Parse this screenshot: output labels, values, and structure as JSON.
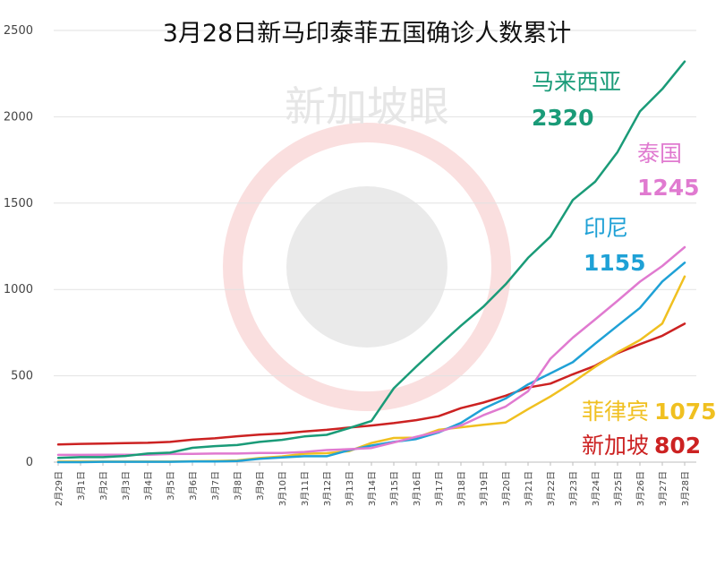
{
  "chart_data": {
    "type": "line",
    "title": "3月28日新马印泰菲五国确诊人数累计",
    "watermark": "新加坡眼",
    "ylim": [
      0,
      2500
    ],
    "yticks": [
      0,
      500,
      1000,
      1500,
      2000,
      2500
    ],
    "grid": "horizontal",
    "categories": [
      "2月29日",
      "3月1日",
      "3月2日",
      "3月3日",
      "3月4日",
      "3月5日",
      "3月6日",
      "3月7日",
      "3月8日",
      "3月9日",
      "3月10日",
      "3月11日",
      "3月12日",
      "3月13日",
      "3月14日",
      "3月15日",
      "3月16日",
      "3月17日",
      "3月18日",
      "3月19日",
      "3月20日",
      "3月21日",
      "3月22日",
      "3月23日",
      "3月24日",
      "3月25日",
      "3月26日",
      "3月27日",
      "3月28日"
    ],
    "series": [
      {
        "name": "马来西亚",
        "final_label": "2320",
        "color": "#1a9b78",
        "values": [
          25,
          29,
          29,
          36,
          50,
          55,
          83,
          93,
          99,
          117,
          129,
          149,
          158,
          197,
          238,
          428,
          553,
          673,
          790,
          900,
          1030,
          1183,
          1306,
          1518,
          1624,
          1796,
          2031,
          2161,
          2320
        ]
      },
      {
        "name": "泰国",
        "final_label": "1245",
        "color": "#e07ad0",
        "values": [
          42,
          42,
          43,
          43,
          43,
          47,
          48,
          50,
          50,
          53,
          53,
          59,
          70,
          75,
          82,
          114,
          147,
          177,
          212,
          272,
          322,
          411,
          599,
          721,
          827,
          934,
          1045,
          1136,
          1245
        ]
      },
      {
        "name": "印尼",
        "final_label": "1155",
        "color": "#1fa1d6",
        "values": [
          0,
          0,
          2,
          2,
          2,
          2,
          4,
          4,
          6,
          19,
          27,
          34,
          34,
          69,
          96,
          117,
          134,
          172,
          227,
          309,
          369,
          450,
          514,
          579,
          686,
          790,
          893,
          1046,
          1155
        ]
      },
      {
        "name": "菲律宾",
        "final_label": "1075",
        "color": "#f0c020",
        "values": [
          3,
          3,
          3,
          3,
          3,
          3,
          5,
          6,
          10,
          24,
          33,
          49,
          52,
          64,
          111,
          140,
          142,
          187,
          202,
          217,
          230,
          307,
          380,
          462,
          552,
          636,
          707,
          803,
          1075
        ]
      },
      {
        "name": "新加坡",
        "final_label": "802",
        "color": "#cc2222",
        "values": [
          102,
          106,
          108,
          110,
          112,
          117,
          130,
          138,
          150,
          160,
          166,
          178,
          187,
          200,
          212,
          226,
          243,
          266,
          313,
          345,
          385,
          432,
          455,
          509,
          558,
          631,
          683,
          732,
          802
        ]
      }
    ]
  }
}
